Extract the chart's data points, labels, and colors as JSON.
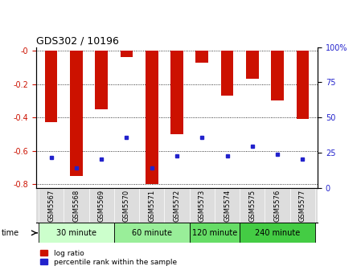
{
  "title": "GDS302 / 10196",
  "samples": [
    "GSM5567",
    "GSM5568",
    "GSM5569",
    "GSM5570",
    "GSM5571",
    "GSM5572",
    "GSM5573",
    "GSM5574",
    "GSM5575",
    "GSM5576",
    "GSM5577"
  ],
  "log_ratio": [
    -0.43,
    -0.75,
    -0.35,
    -0.04,
    -0.8,
    -0.5,
    -0.07,
    -0.27,
    -0.17,
    -0.3,
    -0.41
  ],
  "percentile_y": [
    -0.64,
    -0.7,
    -0.65,
    -0.52,
    -0.7,
    -0.63,
    -0.52,
    -0.63,
    -0.57,
    -0.62,
    -0.65
  ],
  "bar_color": "#cc1100",
  "dot_color": "#2222cc",
  "ylim_left": [
    -0.82,
    0.02
  ],
  "ylim_right": [
    0,
    100
  ],
  "yticks_left": [
    0.0,
    -0.2,
    -0.4,
    -0.6,
    -0.8
  ],
  "yticks_right": [
    0,
    25,
    50,
    75,
    100
  ],
  "groups": [
    {
      "label": "30 minute",
      "start": 0,
      "end": 3,
      "color": "#ccffcc"
    },
    {
      "label": "60 minute",
      "start": 3,
      "end": 6,
      "color": "#99ee99"
    },
    {
      "label": "120 minute",
      "start": 6,
      "end": 8,
      "color": "#66dd66"
    },
    {
      "label": "240 minute",
      "start": 8,
      "end": 11,
      "color": "#44cc44"
    }
  ],
  "time_label": "time",
  "legend_log_ratio": "log ratio",
  "legend_percentile": "percentile rank within the sample",
  "tick_label_bg": "#dddddd",
  "bar_width": 0.5
}
